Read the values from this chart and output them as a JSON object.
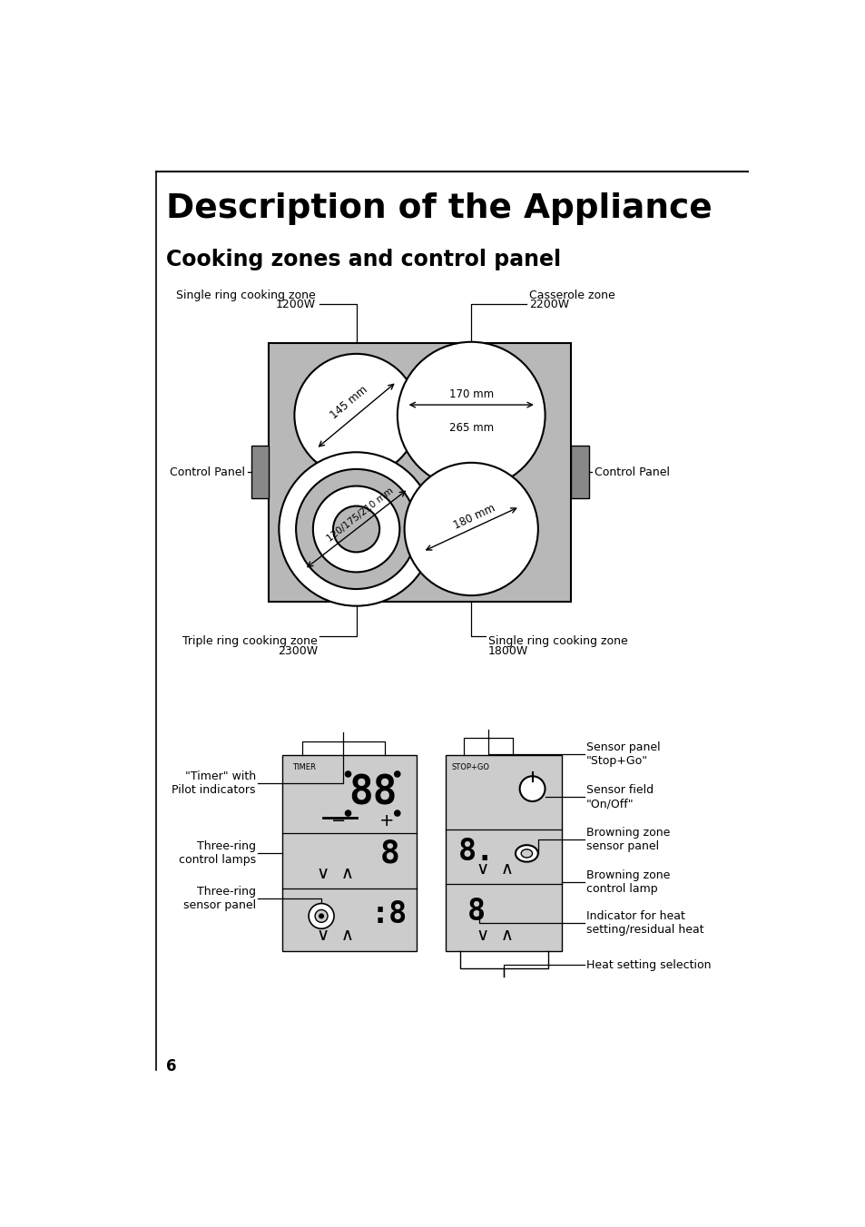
{
  "title": "Description of the Appliance",
  "subtitle": "Cooking zones and control panel",
  "page_number": "6",
  "background_color": "#ffffff",
  "gray_color": "#b8b8b8",
  "dark_gray": "#888888",
  "panel_bg": "#cccccc"
}
